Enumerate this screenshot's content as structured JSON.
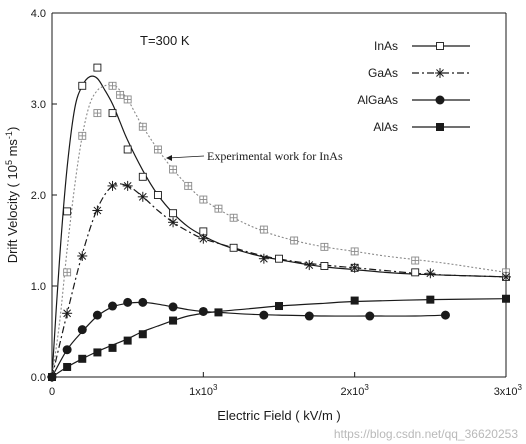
{
  "chart_data": {
    "type": "line",
    "annotation_temperature": "T=300 K",
    "xlabel": "Electric Field ( kV/m )",
    "ylabel_main": "Drift Velocity ( 10",
    "ylabel_exp": "5",
    "ylabel_tail": " ms",
    "ylabel_exp2": "-1",
    "ylabel_end": ")",
    "xlim": [
      0,
      3000
    ],
    "ylim": [
      0,
      4.0
    ],
    "y_ticks": [
      {
        "v": 0,
        "label": "0.0"
      },
      {
        "v": 1,
        "label": "1.0"
      },
      {
        "v": 2,
        "label": "2.0"
      },
      {
        "v": 3,
        "label": "3.0"
      },
      {
        "v": 4,
        "label": "4.0"
      }
    ],
    "x_ticks": [
      {
        "v": 0,
        "base": "0",
        "exp": ""
      },
      {
        "v": 1000,
        "base": "1x10",
        "exp": "3"
      },
      {
        "v": 2000,
        "base": "2x10",
        "exp": "3"
      },
      {
        "v": 3000,
        "base": "3x10",
        "exp": "3"
      }
    ],
    "legend": [
      "InAs",
      "GaAs",
      "AlGaAs",
      "AlAs"
    ],
    "experimental_label": "Experimental work for InAs",
    "watermark": "https://blog.csdn.net/qq_36620253",
    "series": [
      {
        "name": "InAs",
        "style": "solid",
        "marker": "open-square",
        "curve": [
          [
            0,
            0
          ],
          [
            50,
            1.3
          ],
          [
            100,
            2.3
          ],
          [
            150,
            2.95
          ],
          [
            200,
            3.2
          ],
          [
            250,
            3.3
          ],
          [
            300,
            3.28
          ],
          [
            350,
            3.15
          ],
          [
            400,
            3.0
          ],
          [
            450,
            2.8
          ],
          [
            500,
            2.6
          ],
          [
            600,
            2.27
          ],
          [
            700,
            2.0
          ],
          [
            800,
            1.8
          ],
          [
            900,
            1.65
          ],
          [
            1000,
            1.55
          ],
          [
            1100,
            1.47
          ],
          [
            1200,
            1.41
          ],
          [
            1300,
            1.36
          ],
          [
            1400,
            1.32
          ],
          [
            1600,
            1.26
          ],
          [
            1800,
            1.21
          ],
          [
            2000,
            1.18
          ],
          [
            2200,
            1.15
          ],
          [
            2400,
            1.13
          ],
          [
            2600,
            1.12
          ],
          [
            2800,
            1.11
          ],
          [
            3000,
            1.1
          ]
        ],
        "markers": [
          [
            0,
            0
          ],
          [
            100,
            1.82
          ],
          [
            200,
            3.2
          ],
          [
            300,
            3.4
          ],
          [
            400,
            2.9
          ],
          [
            500,
            2.5
          ],
          [
            600,
            2.2
          ],
          [
            700,
            2.0
          ],
          [
            800,
            1.8
          ],
          [
            1000,
            1.6
          ],
          [
            1200,
            1.42
          ],
          [
            1500,
            1.3
          ],
          [
            1800,
            1.22
          ],
          [
            2000,
            1.2
          ],
          [
            2400,
            1.15
          ],
          [
            3000,
            1.1
          ]
        ]
      },
      {
        "name": "Experimental work for InAs",
        "style": "dotted",
        "marker": "boxed-plus",
        "curve": [
          [
            0,
            0
          ],
          [
            50,
            0.6
          ],
          [
            100,
            1.4
          ],
          [
            150,
            2.1
          ],
          [
            200,
            2.65
          ],
          [
            250,
            3.0
          ],
          [
            300,
            3.15
          ],
          [
            350,
            3.2
          ],
          [
            400,
            3.22
          ],
          [
            450,
            3.15
          ],
          [
            500,
            3.05
          ],
          [
            550,
            2.9
          ],
          [
            600,
            2.75
          ],
          [
            700,
            2.5
          ],
          [
            800,
            2.28
          ],
          [
            900,
            2.1
          ],
          [
            1000,
            1.95
          ],
          [
            1200,
            1.75
          ],
          [
            1400,
            1.6
          ],
          [
            1600,
            1.5
          ],
          [
            1800,
            1.43
          ],
          [
            2000,
            1.38
          ],
          [
            2200,
            1.33
          ],
          [
            2400,
            1.29
          ],
          [
            2600,
            1.25
          ],
          [
            2800,
            1.2
          ],
          [
            3000,
            1.15
          ]
        ],
        "markers": [
          [
            0,
            0
          ],
          [
            100,
            1.15
          ],
          [
            200,
            2.65
          ],
          [
            300,
            2.9
          ],
          [
            400,
            3.2
          ],
          [
            450,
            3.1
          ],
          [
            500,
            3.05
          ],
          [
            600,
            2.75
          ],
          [
            700,
            2.5
          ],
          [
            800,
            2.28
          ],
          [
            900,
            2.1
          ],
          [
            1000,
            1.95
          ],
          [
            1100,
            1.85
          ],
          [
            1200,
            1.75
          ],
          [
            1400,
            1.62
          ],
          [
            1600,
            1.5
          ],
          [
            1800,
            1.43
          ],
          [
            2000,
            1.38
          ],
          [
            2400,
            1.28
          ],
          [
            3000,
            1.15
          ]
        ]
      },
      {
        "name": "GaAs",
        "style": "dashdot",
        "marker": "asterisk",
        "curve": [
          [
            0,
            0
          ],
          [
            100,
            0.7
          ],
          [
            200,
            1.35
          ],
          [
            300,
            1.85
          ],
          [
            400,
            2.1
          ],
          [
            500,
            2.1
          ],
          [
            600,
            1.98
          ],
          [
            700,
            1.83
          ],
          [
            800,
            1.7
          ],
          [
            900,
            1.6
          ],
          [
            1000,
            1.52
          ],
          [
            1200,
            1.42
          ],
          [
            1400,
            1.33
          ],
          [
            1600,
            1.27
          ],
          [
            1800,
            1.23
          ],
          [
            2000,
            1.2
          ],
          [
            2200,
            1.17
          ],
          [
            2400,
            1.14
          ],
          [
            2600,
            1.12
          ],
          [
            2800,
            1.11
          ],
          [
            3000,
            1.1
          ]
        ],
        "markers": [
          [
            0,
            0
          ],
          [
            100,
            0.7
          ],
          [
            200,
            1.33
          ],
          [
            300,
            1.83
          ],
          [
            400,
            2.1
          ],
          [
            500,
            2.1
          ],
          [
            600,
            1.98
          ],
          [
            800,
            1.7
          ],
          [
            1000,
            1.52
          ],
          [
            1400,
            1.3
          ],
          [
            1700,
            1.23
          ],
          [
            2000,
            1.2
          ],
          [
            2500,
            1.14
          ],
          [
            3000,
            1.1
          ]
        ]
      },
      {
        "name": "AlGaAs",
        "style": "solid",
        "marker": "filled-circle",
        "curve": [
          [
            0,
            0
          ],
          [
            100,
            0.3
          ],
          [
            200,
            0.5
          ],
          [
            300,
            0.67
          ],
          [
            400,
            0.77
          ],
          [
            500,
            0.81
          ],
          [
            600,
            0.82
          ],
          [
            700,
            0.8
          ],
          [
            800,
            0.77
          ],
          [
            900,
            0.74
          ],
          [
            1000,
            0.72
          ],
          [
            1100,
            0.71
          ],
          [
            1300,
            0.69
          ],
          [
            1500,
            0.68
          ],
          [
            1800,
            0.67
          ],
          [
            2100,
            0.67
          ],
          [
            2400,
            0.67
          ],
          [
            2600,
            0.68
          ]
        ],
        "markers": [
          [
            0,
            0
          ],
          [
            100,
            0.3
          ],
          [
            200,
            0.52
          ],
          [
            300,
            0.68
          ],
          [
            400,
            0.78
          ],
          [
            500,
            0.82
          ],
          [
            600,
            0.82
          ],
          [
            800,
            0.77
          ],
          [
            1000,
            0.72
          ],
          [
            1400,
            0.68
          ],
          [
            1700,
            0.67
          ],
          [
            2100,
            0.67
          ],
          [
            2600,
            0.68
          ]
        ]
      },
      {
        "name": "AlAs",
        "style": "solid",
        "marker": "filled-square",
        "curve": [
          [
            0,
            0
          ],
          [
            100,
            0.11
          ],
          [
            200,
            0.2
          ],
          [
            300,
            0.28
          ],
          [
            400,
            0.35
          ],
          [
            500,
            0.42
          ],
          [
            600,
            0.5
          ],
          [
            700,
            0.56
          ],
          [
            800,
            0.62
          ],
          [
            900,
            0.67
          ],
          [
            1000,
            0.7
          ],
          [
            1100,
            0.72
          ],
          [
            1300,
            0.75
          ],
          [
            1500,
            0.78
          ],
          [
            1800,
            0.81
          ],
          [
            2000,
            0.83
          ],
          [
            2500,
            0.85
          ],
          [
            3000,
            0.86
          ]
        ],
        "markers": [
          [
            0,
            0
          ],
          [
            100,
            0.11
          ],
          [
            200,
            0.2
          ],
          [
            300,
            0.27
          ],
          [
            400,
            0.32
          ],
          [
            500,
            0.4
          ],
          [
            600,
            0.47
          ],
          [
            800,
            0.62
          ],
          [
            1100,
            0.71
          ],
          [
            1500,
            0.78
          ],
          [
            2000,
            0.84
          ],
          [
            2500,
            0.85
          ],
          [
            3000,
            0.86
          ]
        ]
      }
    ]
  }
}
